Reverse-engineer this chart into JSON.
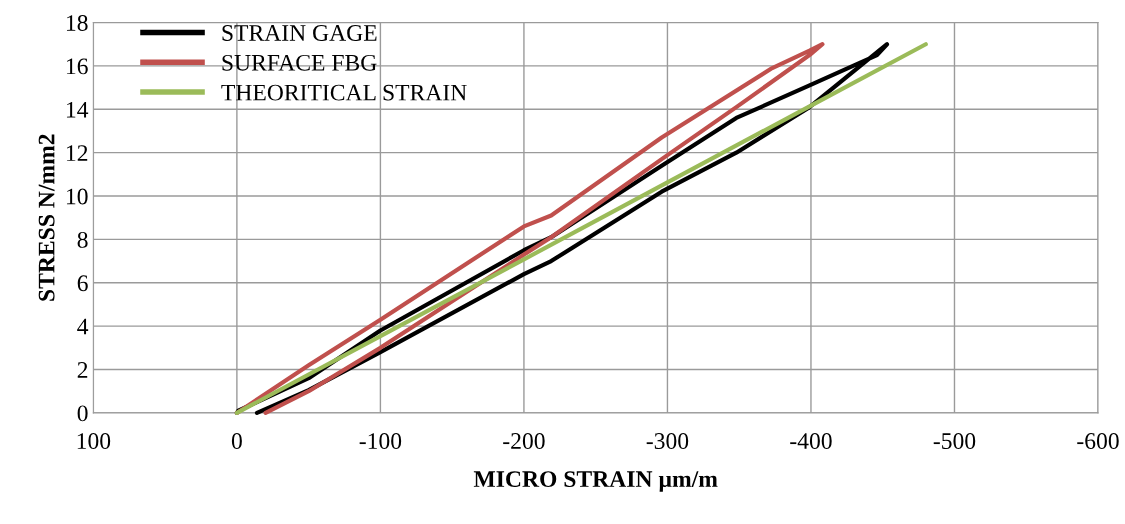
{
  "chart_data": {
    "type": "line",
    "xlabel": "MICRO STRAIN µm/m",
    "ylabel": "STRESS N/mm2",
    "xlim": [
      100,
      -600
    ],
    "xticks": [
      100,
      0,
      -100,
      -200,
      -300,
      -400,
      -500,
      -600
    ],
    "ylim": [
      0,
      18
    ],
    "yticks": [
      0,
      2,
      4,
      6,
      8,
      10,
      12,
      14,
      16,
      18
    ],
    "grid": true,
    "legend": "top left",
    "marker": "none",
    "line_style": "solid",
    "series": [
      {
        "name": "STRAIN GAGE",
        "color": "#000000",
        "x": [
          -14,
          -50,
          -100,
          -200,
          -219,
          -296,
          -348,
          -399,
          -438,
          -453,
          -446,
          -399,
          -348,
          -296,
          -219,
          -200,
          -100,
          -50,
          -1,
          0
        ],
        "values": [
          0,
          1.05,
          2.8,
          6.4,
          7.0,
          10.2,
          12.0,
          14.1,
          16.2,
          17,
          16.5,
          15.1,
          13.6,
          11.4,
          8.1,
          7.5,
          3.8,
          1.6,
          0.1,
          0
        ]
      },
      {
        "name": "SURFACE FBG",
        "color": "#c0504d",
        "x": [
          -20,
          -50,
          -100,
          -200,
          -219,
          -296,
          -348,
          -399,
          -408,
          -399,
          -373,
          -296,
          -219,
          -200,
          -100,
          -50,
          0
        ],
        "values": [
          0,
          1.0,
          3.0,
          7.3,
          8.1,
          11.7,
          14.1,
          16.5,
          17,
          16.7,
          15.9,
          12.7,
          9.1,
          8.6,
          4.3,
          2.2,
          0
        ]
      },
      {
        "name": "THEORITICAL STRAIN",
        "color": "#9bbb59",
        "x": [
          0,
          -100,
          -200,
          -300,
          -400,
          -480
        ],
        "values": [
          0,
          3.54,
          7.08,
          10.63,
          14.17,
          17
        ]
      }
    ]
  }
}
